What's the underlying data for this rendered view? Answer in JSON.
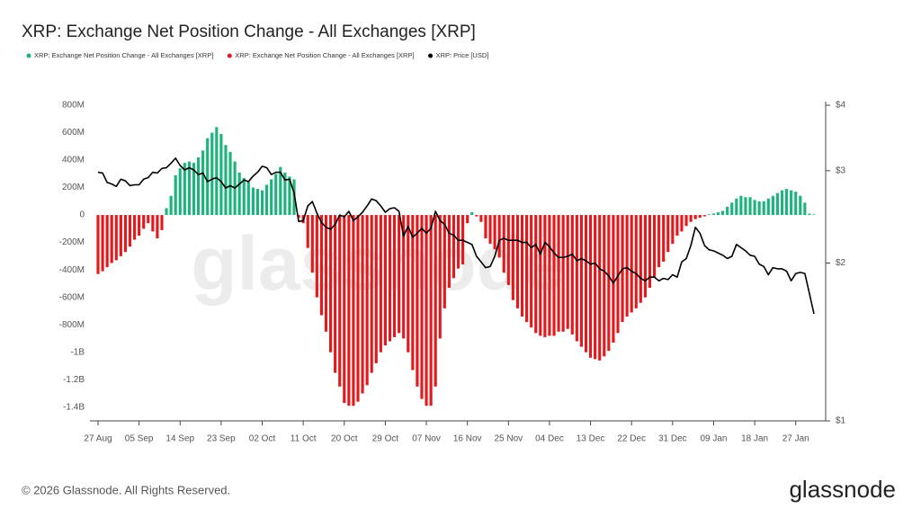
{
  "chart_data": {
    "type": "bar",
    "title": "XRP: Exchange Net Position Change - All Exchanges [XRP]",
    "watermark": "glassnode",
    "footer": "© 2026 Glassnode. All Rights Reserved.",
    "logo": "glassnode",
    "categories": [
      "27 Aug",
      null,
      null,
      null,
      null,
      null,
      null,
      null,
      null,
      "05 Sep",
      null,
      null,
      null,
      null,
      null,
      null,
      null,
      null,
      "14 Sep",
      null,
      null,
      null,
      null,
      null,
      null,
      null,
      null,
      "23 Sep",
      null,
      null,
      null,
      null,
      null,
      null,
      null,
      null,
      "02 Oct",
      null,
      null,
      null,
      null,
      null,
      null,
      null,
      null,
      "11 Oct",
      null,
      null,
      null,
      null,
      null,
      null,
      null,
      null,
      "20 Oct",
      null,
      null,
      null,
      null,
      null,
      null,
      null,
      null,
      "29 Oct",
      null,
      null,
      null,
      null,
      null,
      null,
      null,
      null,
      "07 Nov",
      null,
      null,
      null,
      null,
      null,
      null,
      null,
      null,
      "16 Nov",
      null,
      null,
      null,
      null,
      null,
      null,
      null,
      null,
      "25 Nov",
      null,
      null,
      null,
      null,
      null,
      null,
      null,
      null,
      "04 Dec",
      null,
      null,
      null,
      null,
      null,
      null,
      null,
      null,
      "13 Dec",
      null,
      null,
      null,
      null,
      null,
      null,
      null,
      null,
      "22 Dec",
      null,
      null,
      null,
      null,
      null,
      null,
      null,
      null,
      "31 Dec",
      null,
      null,
      null,
      null,
      null,
      null,
      null,
      null,
      "09 Jan",
      null,
      null,
      null,
      null,
      null,
      null,
      null,
      null,
      "18 Jan",
      null,
      null,
      null,
      null,
      null,
      null,
      null,
      null,
      "27 Jan",
      null,
      null,
      null,
      null
    ],
    "series": [
      {
        "name": "XRP: Exchange Net Position Change - All Exchanges [XRP]",
        "type": "bar",
        "color": "#1db37a",
        "values": [
          null,
          null,
          null,
          null,
          null,
          null,
          null,
          null,
          null,
          null,
          null,
          null,
          null,
          null,
          null,
          50,
          140,
          290,
          340,
          380,
          390,
          380,
          420,
          470,
          560,
          600,
          640,
          590,
          510,
          460,
          390,
          310,
          270,
          240,
          200,
          190,
          180,
          220,
          260,
          300,
          350,
          310,
          280,
          260,
          null,
          null,
          null,
          null,
          null,
          null,
          null,
          null,
          null,
          null,
          null,
          null,
          null,
          null,
          null,
          null,
          null,
          null,
          null,
          null,
          null,
          null,
          null,
          null,
          null,
          null,
          null,
          null,
          null,
          null,
          null,
          null,
          null,
          null,
          null,
          null,
          null,
          null,
          20,
          null,
          null,
          null,
          null,
          null,
          null,
          null,
          null,
          null,
          null,
          null,
          null,
          null,
          null,
          null,
          null,
          null,
          null,
          null,
          null,
          null,
          null,
          null,
          null,
          null,
          null,
          null,
          null,
          null,
          null,
          null,
          null,
          null,
          null,
          null,
          null,
          null,
          null,
          null,
          null,
          null,
          null,
          null,
          null,
          null,
          null,
          null,
          null,
          null,
          null,
          null,
          5,
          10,
          20,
          30,
          60,
          90,
          120,
          140,
          130,
          130,
          110,
          100,
          100,
          120,
          140,
          160,
          180,
          190,
          180,
          170,
          140,
          90,
          10,
          5
        ]
      },
      {
        "name": "XRP: Exchange Net Position Change - All Exchanges [XRP]",
        "type": "bar",
        "color": "#e3191c",
        "values": [
          -430,
          -410,
          -380,
          -350,
          -330,
          -300,
          -270,
          -230,
          -180,
          -150,
          -100,
          -60,
          -120,
          -170,
          -110,
          null,
          null,
          null,
          null,
          null,
          null,
          null,
          null,
          null,
          null,
          null,
          null,
          null,
          null,
          null,
          null,
          null,
          null,
          null,
          null,
          null,
          null,
          null,
          null,
          null,
          null,
          null,
          null,
          null,
          -20,
          -60,
          -240,
          -420,
          -600,
          -730,
          -850,
          -1000,
          -1150,
          -1250,
          -1370,
          -1390,
          -1390,
          -1360,
          -1300,
          -1240,
          -1150,
          -1080,
          -1000,
          -950,
          -920,
          -890,
          -860,
          -900,
          -1000,
          -1130,
          -1250,
          -1340,
          -1390,
          -1390,
          -1250,
          -900,
          -680,
          -530,
          -460,
          -390,
          -360,
          -60,
          null,
          -10,
          -50,
          -170,
          -210,
          -250,
          -310,
          -420,
          -510,
          -620,
          -680,
          -740,
          -780,
          -820,
          -860,
          -880,
          -890,
          -880,
          -880,
          -850,
          -850,
          -830,
          -870,
          -920,
          -960,
          -1000,
          -1040,
          -1050,
          -1060,
          -1030,
          -990,
          -930,
          -860,
          -780,
          -740,
          -710,
          -680,
          -640,
          -600,
          -530,
          -450,
          -380,
          -340,
          -270,
          -210,
          -150,
          -120,
          -80,
          -50,
          -30,
          -20,
          -10,
          null,
          null,
          null,
          null,
          null,
          null,
          null,
          null,
          null,
          null,
          null,
          null,
          null,
          null,
          null,
          null,
          null,
          null,
          null,
          null,
          null,
          null,
          null,
          null
        ]
      },
      {
        "name": "XRP: Price [USD]",
        "type": "line",
        "axis": "y2",
        "color": "#000000",
        "values": [
          2.98,
          2.97,
          2.85,
          2.83,
          2.8,
          2.89,
          2.87,
          2.81,
          2.82,
          2.82,
          2.89,
          2.91,
          2.98,
          2.97,
          3.03,
          3.04,
          3.1,
          3.17,
          3.07,
          3.01,
          3.04,
          3.01,
          2.95,
          2.97,
          2.86,
          2.89,
          2.91,
          2.86,
          2.78,
          2.81,
          2.78,
          2.83,
          2.88,
          2.86,
          2.93,
          2.98,
          3.06,
          3.04,
          2.95,
          2.98,
          2.98,
          2.88,
          2.89,
          2.72,
          2.4,
          2.41,
          2.57,
          2.62,
          2.49,
          2.39,
          2.34,
          2.32,
          2.37,
          2.47,
          2.45,
          2.51,
          2.41,
          2.45,
          2.5,
          2.57,
          2.65,
          2.63,
          2.57,
          2.5,
          2.54,
          2.55,
          2.51,
          2.25,
          2.35,
          2.24,
          2.28,
          2.33,
          2.28,
          2.33,
          2.51,
          2.41,
          2.37,
          2.28,
          2.26,
          2.21,
          2.21,
          2.19,
          2.17,
          2.06,
          2.01,
          1.96,
          1.97,
          2.06,
          2.21,
          2.23,
          2.21,
          2.21,
          2.21,
          2.19,
          2.19,
          2.14,
          2.17,
          2.08,
          2.19,
          2.15,
          2.09,
          2.05,
          2.05,
          2.06,
          2.08,
          2.02,
          2.04,
          2.02,
          1.99,
          2.0,
          1.95,
          1.93,
          1.89,
          1.83,
          1.89,
          1.95,
          1.96,
          1.93,
          1.91,
          1.87,
          1.85,
          1.88,
          1.88,
          1.85,
          1.87,
          1.86,
          1.9,
          1.88,
          2.01,
          2.04,
          2.16,
          2.34,
          2.28,
          2.16,
          2.12,
          2.11,
          2.09,
          2.07,
          2.04,
          2.06,
          2.17,
          2.14,
          2.11,
          2.07,
          2.06,
          1.99,
          1.97,
          1.9,
          1.96,
          1.95,
          1.95,
          1.93,
          1.85,
          1.91,
          1.92,
          1.91,
          1.75,
          1.6
        ]
      }
    ],
    "ylim": [
      -1500,
      800
    ],
    "yticks": [
      {
        "value": 800,
        "label": "800M"
      },
      {
        "value": 600,
        "label": "600M"
      },
      {
        "value": 400,
        "label": "400M"
      },
      {
        "value": 200,
        "label": "200M"
      },
      0,
      {
        "value": -200,
        "label": "-200M"
      },
      {
        "value": -400,
        "label": "-400M"
      },
      {
        "value": -600,
        "label": "-600M"
      },
      {
        "value": -800,
        "label": "-800M"
      },
      {
        "value": -1000,
        "label": "-1B"
      },
      {
        "value": -1200,
        "label": "-1.2B"
      },
      {
        "value": -1400,
        "label": "-1.4B"
      }
    ],
    "y2lim": [
      1,
      4
    ],
    "y2scale": "log",
    "y2ticks": [
      {
        "value": 1,
        "label": "$1"
      },
      {
        "value": 2,
        "label": "$2"
      },
      {
        "value": 3,
        "label": "$3"
      },
      {
        "value": 4,
        "label": "$4"
      }
    ],
    "grid": false
  }
}
